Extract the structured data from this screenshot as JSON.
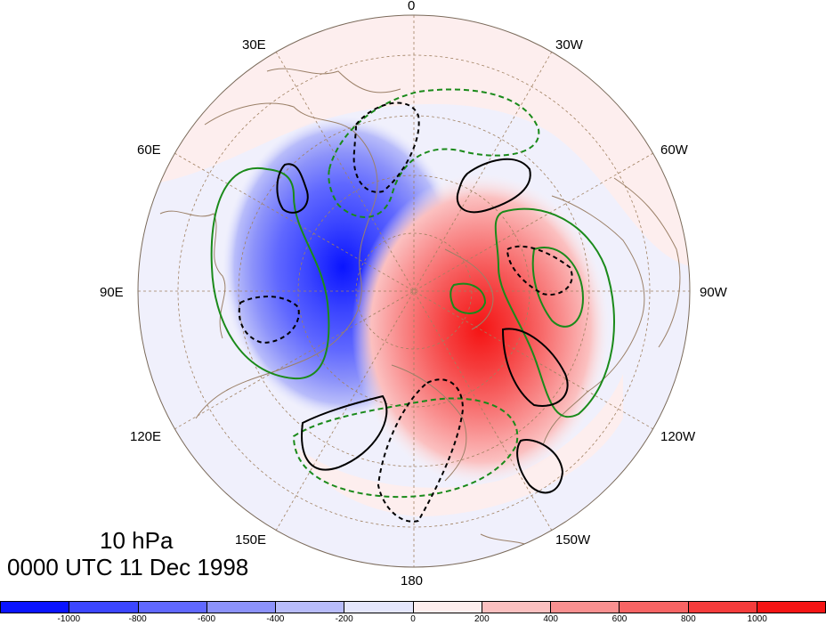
{
  "map": {
    "projection": "polar-stereographic-north",
    "longitude_labels": [
      {
        "id": "lon-0",
        "text": "0"
      },
      {
        "id": "lon-30w",
        "text": "30W"
      },
      {
        "id": "lon-60w",
        "text": "60W"
      },
      {
        "id": "lon-90w",
        "text": "90W"
      },
      {
        "id": "lon-120w",
        "text": "120W"
      },
      {
        "id": "lon-150w",
        "text": "150W"
      },
      {
        "id": "lon-180",
        "text": "180"
      },
      {
        "id": "lon-150e",
        "text": "150E"
      },
      {
        "id": "lon-120e",
        "text": "120E"
      },
      {
        "id": "lon-90e",
        "text": "90E"
      },
      {
        "id": "lon-60e",
        "text": "60E"
      },
      {
        "id": "lon-30e",
        "text": "30E"
      }
    ],
    "colors": {
      "ocean_fill": "#f0f0fc",
      "coastline": "#9b8068",
      "grid": "#a08060",
      "contour_green": "#1a8a1a",
      "contour_black": "#000000"
    }
  },
  "title": {
    "level": "10 hPa",
    "time": "0000 UTC 11 Dec 1998"
  },
  "colorbar": {
    "colors": [
      "#0a14ff",
      "#3c46ff",
      "#6068ff",
      "#8c92fa",
      "#b8bcfa",
      "#e4e6fc",
      "#fdeeee",
      "#fbc0c0",
      "#f99090",
      "#f76464",
      "#f53c3c",
      "#f51414"
    ],
    "labels": [
      "-1000",
      "-800",
      "-600",
      "-400",
      "-200",
      "0",
      "200",
      "400",
      "600",
      "800",
      "1000"
    ]
  }
}
